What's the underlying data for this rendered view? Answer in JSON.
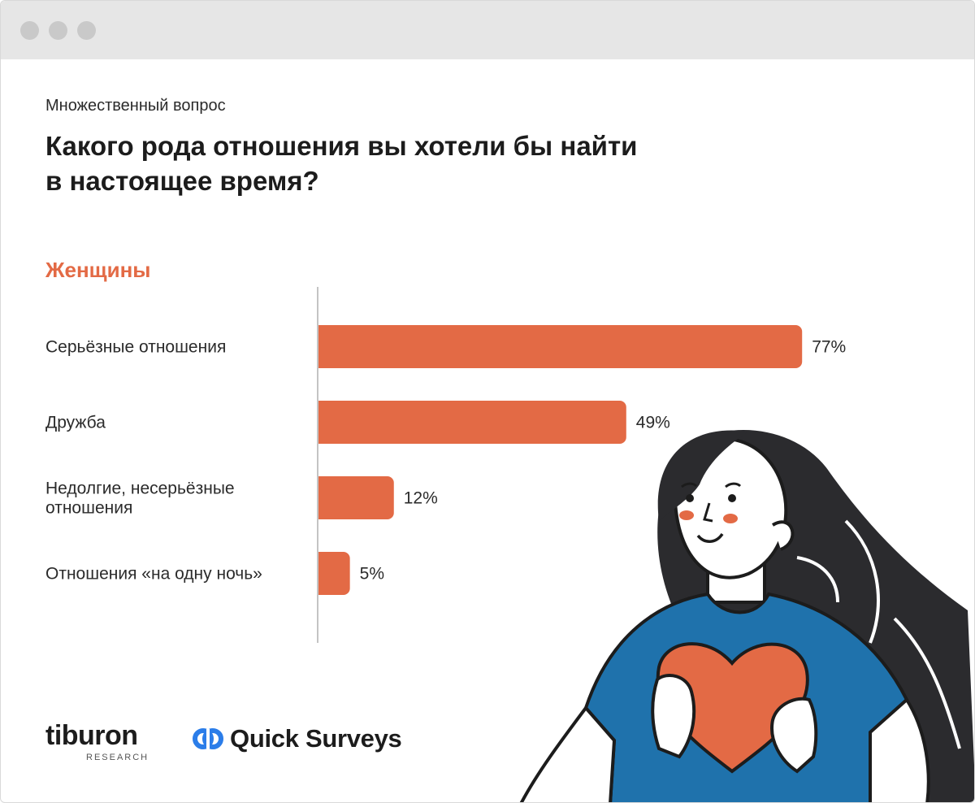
{
  "subtitle": "Множественный вопрос",
  "title_lines": [
    "Какого рода отношения вы хотели бы найти",
    "в настоящее время?"
  ],
  "group_label": "Женщины",
  "colors": {
    "accent": "#e36a45",
    "bar": "#e36a45",
    "axis": "#c4c4c4"
  },
  "chart_data": {
    "type": "bar",
    "orientation": "horizontal",
    "categories": [
      [
        "Серьёзные отношения"
      ],
      [
        "Дружба"
      ],
      [
        "Недолгие, несерьёзные",
        "отношения"
      ],
      [
        "Отношения «на одну ночь»"
      ]
    ],
    "values": [
      77,
      49,
      12,
      5
    ],
    "value_labels": [
      "77%",
      "49%",
      "12%",
      "5%"
    ],
    "xlim": [
      0,
      100
    ],
    "grid": false
  },
  "logos": {
    "tiburon": {
      "name": "tiburon",
      "sub": "RESEARCH"
    },
    "quick_surveys": {
      "name": "Quick Surveys",
      "icon": "qs-logo-icon"
    }
  },
  "illustration": {
    "icon": "woman-holding-heart-illustration"
  }
}
